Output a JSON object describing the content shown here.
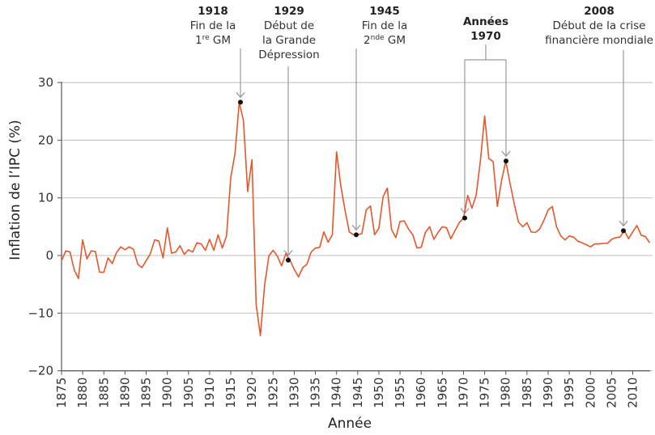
{
  "chart_data": {
    "type": "line",
    "title": "",
    "xlabel": "Année",
    "ylabel": "Inflation de l’IPC (%)",
    "xlim": [
      1875,
      2014
    ],
    "ylim": [
      -20,
      30
    ],
    "yticks": [
      -20,
      -10,
      0,
      10,
      20,
      30
    ],
    "xticks": [
      1875,
      1880,
      1885,
      1890,
      1895,
      1900,
      1905,
      1910,
      1915,
      1920,
      1925,
      1930,
      1935,
      1940,
      1945,
      1950,
      1955,
      1960,
      1965,
      1970,
      1975,
      1980,
      1985,
      1990,
      1995,
      2000,
      2005,
      2010
    ],
    "grid": "horizontal",
    "colors": {
      "line": "#e8562a",
      "grid": "#c9c9c9",
      "annotation": "#9a9a9a",
      "marker": "#111111"
    },
    "x_start": 1875,
    "values": [
      -0.9,
      0.8,
      0.6,
      -2.5,
      -4.0,
      2.7,
      -0.6,
      0.8,
      0.7,
      -2.9,
      -2.9,
      -0.4,
      -1.4,
      0.5,
      1.5,
      1.0,
      1.5,
      1.1,
      -1.5,
      -2.1,
      -0.9,
      0.3,
      2.7,
      2.5,
      -0.4,
      4.8,
      0.4,
      0.6,
      1.7,
      0.2,
      1.0,
      0.6,
      2.2,
      2.0,
      0.9,
      2.8,
      0.9,
      3.6,
      1.3,
      3.4,
      13.5,
      17.7,
      26.6,
      23.4,
      11.1,
      16.6,
      -8.5,
      -13.9,
      -5.2,
      -0.1,
      0.9,
      -0.1,
      -1.8,
      0.3,
      -0.8,
      -2.4,
      -3.7,
      -2.1,
      -1.5,
      0.6,
      1.3,
      1.4,
      4.1,
      2.3,
      3.6,
      18.0,
      12.1,
      7.9,
      4.1,
      3.6,
      3.6,
      3.8,
      7.9,
      8.6,
      3.6,
      4.7,
      10.2,
      11.7,
      4.5,
      3.1,
      5.9,
      6.0,
      4.6,
      3.6,
      1.3,
      1.4,
      4.0,
      5.0,
      2.8,
      4.0,
      5.0,
      4.8,
      2.9,
      4.3,
      5.7,
      6.5,
      10.4,
      8.2,
      10.4,
      16.5,
      24.2,
      16.8,
      16.3,
      8.5,
      13.0,
      16.4,
      12.5,
      8.9,
      5.8,
      5.0,
      5.7,
      4.1,
      4.0,
      4.6,
      6.1,
      7.9,
      8.5,
      5.0,
      3.4,
      2.7,
      3.4,
      3.2,
      2.5,
      2.2,
      1.9,
      1.5,
      2.0,
      2.0,
      2.1,
      2.1,
      2.8,
      3.1,
      3.2,
      4.3,
      2.9,
      4.1,
      5.2,
      3.5,
      3.3,
      2.2
    ],
    "annotations": [
      {
        "year_label": "1918",
        "lines": [
          "Fin de la"
        ],
        "ord": {
          "pre": "1",
          "sup": "re",
          "post": " GM"
        },
        "marker_year": 1917
      },
      {
        "year_label": "1929",
        "lines": [
          "Début de",
          "la Grande",
          "Dépression"
        ],
        "marker_year": 1929
      },
      {
        "year_label": "1945",
        "lines": [
          "Fin de la"
        ],
        "ord": {
          "pre": "2",
          "sup": "nde",
          "post": " GM"
        },
        "marker_year": 1944
      },
      {
        "year_label": "Années",
        "year_label2": "1970",
        "lines": [],
        "marker_years": [
          1970,
          1980
        ]
      },
      {
        "year_label": "2008",
        "lines": [
          "Début de la crise",
          "financière mondiale"
        ],
        "marker_year": 2008
      }
    ]
  }
}
